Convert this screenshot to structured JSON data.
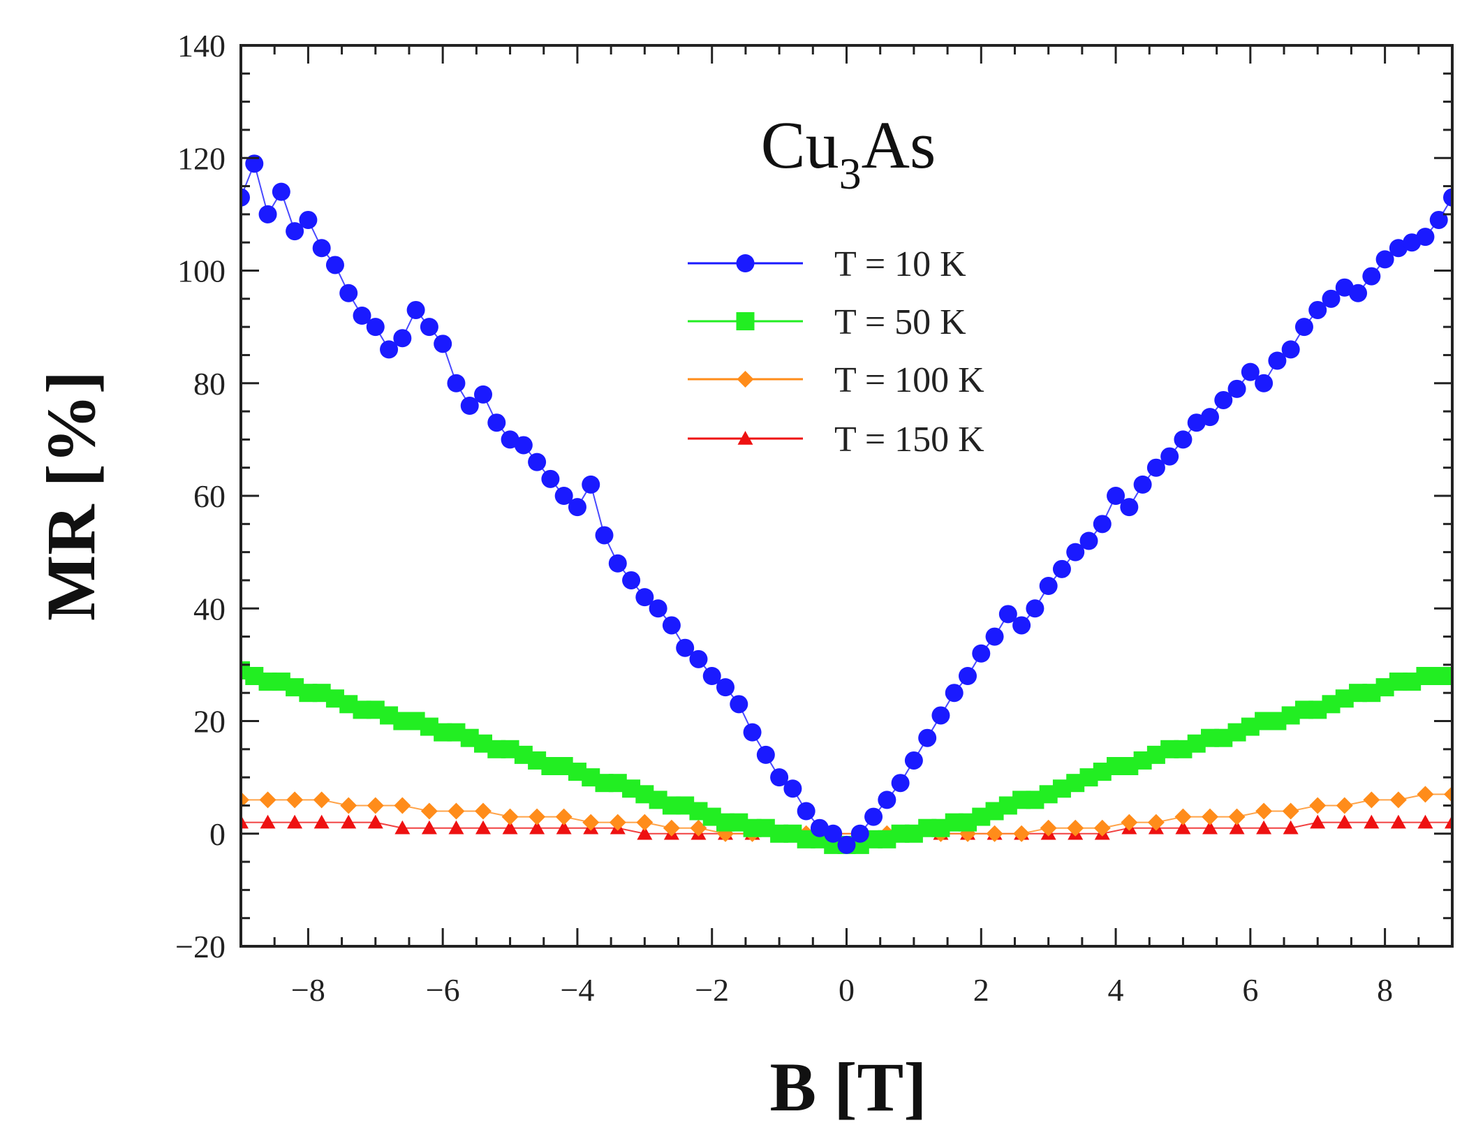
{
  "chart_data": {
    "type": "scatter",
    "xlabel": "B [T]",
    "ylabel": "MR [%]",
    "xlim": [
      -9,
      9
    ],
    "ylim": [
      -20,
      140
    ],
    "xticks": [
      -8,
      -6,
      -4,
      -2,
      0,
      2,
      4,
      6,
      8
    ],
    "yticks": [
      -20,
      0,
      20,
      40,
      60,
      80,
      100,
      120,
      140
    ],
    "xtick_labels": [
      "−8",
      "−6",
      "−4",
      "−2",
      "0",
      "2",
      "4",
      "6",
      "8"
    ],
    "ytick_labels": [
      "−20",
      "0",
      "20",
      "40",
      "60",
      "80",
      "100",
      "120",
      "140"
    ],
    "annotation": {
      "main": "Cu",
      "sub": "3",
      "tail": "As"
    },
    "legend_position": "upper-center",
    "grid": false,
    "series": [
      {
        "name": "T = 10 K",
        "color": "#1a1aff",
        "marker": "circle",
        "x": [
          -9.0,
          -8.8,
          -8.6,
          -8.4,
          -8.2,
          -8.0,
          -7.8,
          -7.6,
          -7.4,
          -7.2,
          -7.0,
          -6.8,
          -6.6,
          -6.4,
          -6.2,
          -6.0,
          -5.8,
          -5.6,
          -5.4,
          -5.2,
          -5.0,
          -4.8,
          -4.6,
          -4.4,
          -4.2,
          -4.0,
          -3.8,
          -3.6,
          -3.4,
          -3.2,
          -3.0,
          -2.8,
          -2.6,
          -2.4,
          -2.2,
          -2.0,
          -1.8,
          -1.6,
          -1.4,
          -1.2,
          -1.0,
          -0.8,
          -0.6,
          -0.4,
          -0.2,
          0.0,
          0.2,
          0.4,
          0.6,
          0.8,
          1.0,
          1.2,
          1.4,
          1.6,
          1.8,
          2.0,
          2.2,
          2.4,
          2.6,
          2.8,
          3.0,
          3.2,
          3.4,
          3.6,
          3.8,
          4.0,
          4.2,
          4.4,
          4.6,
          4.8,
          5.0,
          5.2,
          5.4,
          5.6,
          5.8,
          6.0,
          6.2,
          6.4,
          6.6,
          6.8,
          7.0,
          7.2,
          7.4,
          7.6,
          7.8,
          8.0,
          8.2,
          8.4,
          8.6,
          8.8,
          9.0
        ],
        "y": [
          113,
          119,
          110,
          114,
          107,
          109,
          104,
          101,
          96,
          92,
          90,
          86,
          88,
          93,
          90,
          87,
          80,
          76,
          78,
          73,
          70,
          69,
          66,
          63,
          60,
          58,
          62,
          53,
          48,
          45,
          42,
          40,
          37,
          33,
          31,
          28,
          26,
          23,
          18,
          14,
          10,
          8,
          4,
          1,
          0,
          -2,
          0,
          3,
          6,
          9,
          13,
          17,
          21,
          25,
          28,
          32,
          35,
          39,
          37,
          40,
          44,
          47,
          50,
          52,
          55,
          60,
          58,
          62,
          65,
          67,
          70,
          73,
          74,
          77,
          79,
          82,
          80,
          84,
          86,
          90,
          93,
          95,
          97,
          96,
          99,
          102,
          104,
          105,
          106,
          109,
          113
        ]
      },
      {
        "name": "T = 50 K",
        "color": "#22ee22",
        "marker": "square",
        "x": [
          -9.0,
          -8.8,
          -8.6,
          -8.4,
          -8.2,
          -8.0,
          -7.8,
          -7.6,
          -7.4,
          -7.2,
          -7.0,
          -6.8,
          -6.6,
          -6.4,
          -6.2,
          -6.0,
          -5.8,
          -5.6,
          -5.4,
          -5.2,
          -5.0,
          -4.8,
          -4.6,
          -4.4,
          -4.2,
          -4.0,
          -3.8,
          -3.6,
          -3.4,
          -3.2,
          -3.0,
          -2.8,
          -2.6,
          -2.4,
          -2.2,
          -2.0,
          -1.8,
          -1.6,
          -1.4,
          -1.2,
          -1.0,
          -0.8,
          -0.6,
          -0.4,
          -0.2,
          0.0,
          0.2,
          0.4,
          0.6,
          0.8,
          1.0,
          1.2,
          1.4,
          1.6,
          1.8,
          2.0,
          2.2,
          2.4,
          2.6,
          2.8,
          3.0,
          3.2,
          3.4,
          3.6,
          3.8,
          4.0,
          4.2,
          4.4,
          4.6,
          4.8,
          5.0,
          5.2,
          5.4,
          5.6,
          5.8,
          6.0,
          6.2,
          6.4,
          6.6,
          6.8,
          7.0,
          7.2,
          7.4,
          7.6,
          7.8,
          8.0,
          8.2,
          8.4,
          8.6,
          8.8,
          9.0
        ],
        "y": [
          29,
          28,
          27,
          27,
          26,
          25,
          25,
          24,
          23,
          22,
          22,
          21,
          20,
          20,
          19,
          18,
          18,
          17,
          16,
          15,
          15,
          14,
          13,
          12,
          12,
          11,
          10,
          9,
          9,
          8,
          7,
          6,
          5,
          5,
          4,
          3,
          2,
          2,
          1,
          1,
          0,
          0,
          -1,
          -1,
          -2,
          -2,
          -2,
          -1,
          -1,
          0,
          0,
          1,
          1,
          2,
          2,
          3,
          4,
          5,
          6,
          6,
          7,
          8,
          9,
          10,
          11,
          12,
          12,
          13,
          14,
          15,
          15,
          16,
          17,
          17,
          18,
          19,
          20,
          20,
          21,
          22,
          22,
          23,
          24,
          25,
          25,
          26,
          27,
          27,
          28,
          28,
          28
        ]
      },
      {
        "name": "T = 100 K",
        "color": "#ff8c1a",
        "marker": "diamond",
        "x": [
          -9.0,
          -8.6,
          -8.2,
          -7.8,
          -7.4,
          -7.0,
          -6.6,
          -6.2,
          -5.8,
          -5.4,
          -5.0,
          -4.6,
          -4.2,
          -3.8,
          -3.4,
          -3.0,
          -2.6,
          -2.2,
          -1.8,
          -1.4,
          -1.0,
          -0.6,
          -0.2,
          0.2,
          0.6,
          1.0,
          1.4,
          1.8,
          2.2,
          2.6,
          3.0,
          3.4,
          3.8,
          4.2,
          4.6,
          5.0,
          5.4,
          5.8,
          6.2,
          6.6,
          7.0,
          7.4,
          7.8,
          8.2,
          8.6,
          9.0
        ],
        "y": [
          6,
          6,
          6,
          6,
          5,
          5,
          5,
          4,
          4,
          4,
          3,
          3,
          3,
          2,
          2,
          2,
          1,
          1,
          0,
          0,
          0,
          0,
          0,
          0,
          0,
          0,
          0,
          0,
          0,
          0,
          1,
          1,
          1,
          2,
          2,
          3,
          3,
          3,
          4,
          4,
          5,
          5,
          6,
          6,
          7,
          7
        ]
      },
      {
        "name": "T = 150 K",
        "color": "#ee1111",
        "marker": "triangle",
        "x": [
          -9.0,
          -8.6,
          -8.2,
          -7.8,
          -7.4,
          -7.0,
          -6.6,
          -6.2,
          -5.8,
          -5.4,
          -5.0,
          -4.6,
          -4.2,
          -3.8,
          -3.4,
          -3.0,
          -2.6,
          -2.2,
          -1.8,
          -1.4,
          -1.0,
          -0.6,
          -0.2,
          0.2,
          0.6,
          1.0,
          1.4,
          1.8,
          2.2,
          2.6,
          3.0,
          3.4,
          3.8,
          4.2,
          4.6,
          5.0,
          5.4,
          5.8,
          6.2,
          6.6,
          7.0,
          7.4,
          7.8,
          8.2,
          8.6,
          9.0
        ],
        "y": [
          2,
          2,
          2,
          2,
          2,
          2,
          1,
          1,
          1,
          1,
          1,
          1,
          1,
          1,
          1,
          0,
          0,
          0,
          0,
          0,
          0,
          0,
          0,
          0,
          0,
          0,
          0,
          0,
          0,
          0,
          0,
          0,
          0,
          1,
          1,
          1,
          1,
          1,
          1,
          1,
          2,
          2,
          2,
          2,
          2,
          2
        ]
      }
    ]
  }
}
